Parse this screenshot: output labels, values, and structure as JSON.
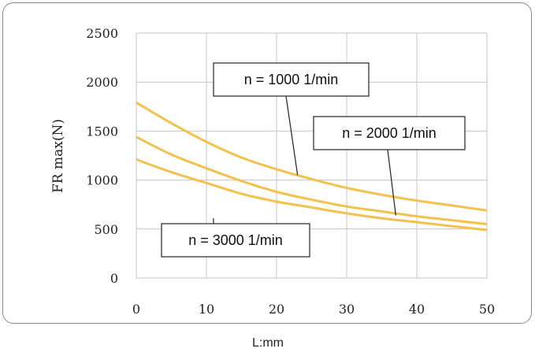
{
  "chart_data": {
    "type": "line",
    "xlabel": "L:mm",
    "ylabel": "FR max(N)",
    "xlim": [
      0,
      50
    ],
    "ylim": [
      0,
      2500
    ],
    "x_ticks": [
      0,
      10,
      20,
      30,
      40,
      50
    ],
    "y_ticks": [
      0,
      500,
      1000,
      1500,
      2000,
      2500
    ],
    "grid": true,
    "series": [
      {
        "name": "n = 1000  1/min",
        "x": [
          0,
          5,
          10,
          15,
          20,
          25,
          30,
          35,
          40,
          45,
          50
        ],
        "y": [
          1790,
          1580,
          1390,
          1230,
          1110,
          1010,
          920,
          850,
          790,
          740,
          690
        ]
      },
      {
        "name": "n = 2000  1/min",
        "x": [
          0,
          5,
          10,
          15,
          20,
          25,
          30,
          35,
          40,
          45,
          50
        ],
        "y": [
          1440,
          1260,
          1120,
          990,
          880,
          800,
          730,
          680,
          630,
          590,
          550
        ]
      },
      {
        "name": "n = 3000  1/min",
        "x": [
          0,
          5,
          10,
          15,
          20,
          25,
          30,
          35,
          40,
          45,
          50
        ],
        "y": [
          1210,
          1080,
          970,
          860,
          780,
          720,
          660,
          610,
          570,
          530,
          490
        ]
      }
    ],
    "annotations": [
      {
        "text": "n = 1000  1/min",
        "series": 0,
        "point": [
          23,
          1050
        ]
      },
      {
        "text": "n = 2000  1/min",
        "series": 1,
        "point": [
          37,
          640
        ]
      },
      {
        "text": "n = 3000  1/min",
        "series": 2,
        "point": [
          11,
          610
        ]
      }
    ],
    "colors": {
      "curve": "#f2c14e",
      "grid": "#c4c4c4",
      "frame": "#8a8a8a"
    }
  }
}
